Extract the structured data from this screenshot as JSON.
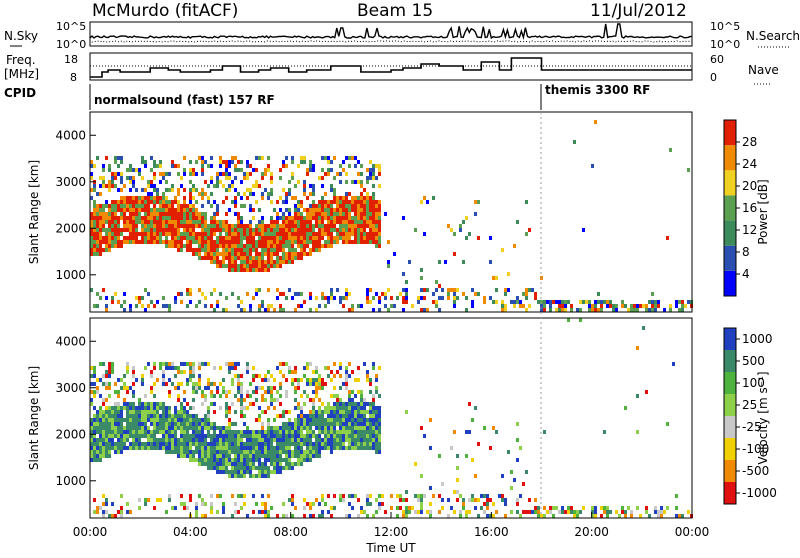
{
  "header": {
    "station": "McMurdo (fitACF)",
    "beam": "Beam 15",
    "date": "11/Jul/2012"
  },
  "noise_panel": {
    "left_label": "N.Sky",
    "right_label": "N.Search",
    "left_ticks": [
      "10^5",
      "10^0"
    ],
    "right_ticks": [
      "10^5",
      "10^0"
    ]
  },
  "freq_panel": {
    "left_label_1": "Freq.",
    "left_label_2": "[MHz]",
    "right_label": "Nave",
    "left_ticks": [
      "18",
      "8"
    ],
    "right_ticks": [
      "60",
      "0"
    ]
  },
  "cpid": {
    "label": "CPID",
    "mode_1": "normalsound (fast) 157 RF",
    "mode_2": "themis 3300 RF"
  },
  "chart_data": [
    {
      "type": "heatmap",
      "quantity": "Power",
      "ylabel": "Slant Range [km]",
      "ylim": [
        200,
        4500
      ],
      "yticks": [
        1000,
        2000,
        3000,
        4000
      ],
      "colorbar_label": "Power [dB]",
      "colorbar_ticks": [
        "4",
        "8",
        "12",
        "16",
        "20",
        "24",
        "28"
      ],
      "colors": [
        "#0000ff",
        "#2b4fb0",
        "#3d8b5a",
        "#5aa050",
        "#f0d020",
        "#f08a00",
        "#e02000"
      ]
    },
    {
      "type": "heatmap",
      "quantity": "Velocity",
      "xlabel": "Time UT",
      "xticks": [
        "00:00",
        "04:00",
        "08:00",
        "12:00",
        "16:00",
        "20:00",
        "00:00"
      ],
      "ylabel": "Slant Range [km]",
      "ylim": [
        200,
        4500
      ],
      "yticks": [
        1000,
        2000,
        3000,
        4000
      ],
      "colorbar_label": "Velocity [m s⁻¹]",
      "colorbar_ticks": [
        "1000",
        "500",
        "100",
        "25",
        "-25",
        "-100",
        "-500",
        "-1000"
      ],
      "colors": [
        "#2040c0",
        "#3a8a6a",
        "#4db33d",
        "#8fd04a",
        "#c8c8c8",
        "#f0d000",
        "#f08a00",
        "#e01010"
      ]
    }
  ]
}
